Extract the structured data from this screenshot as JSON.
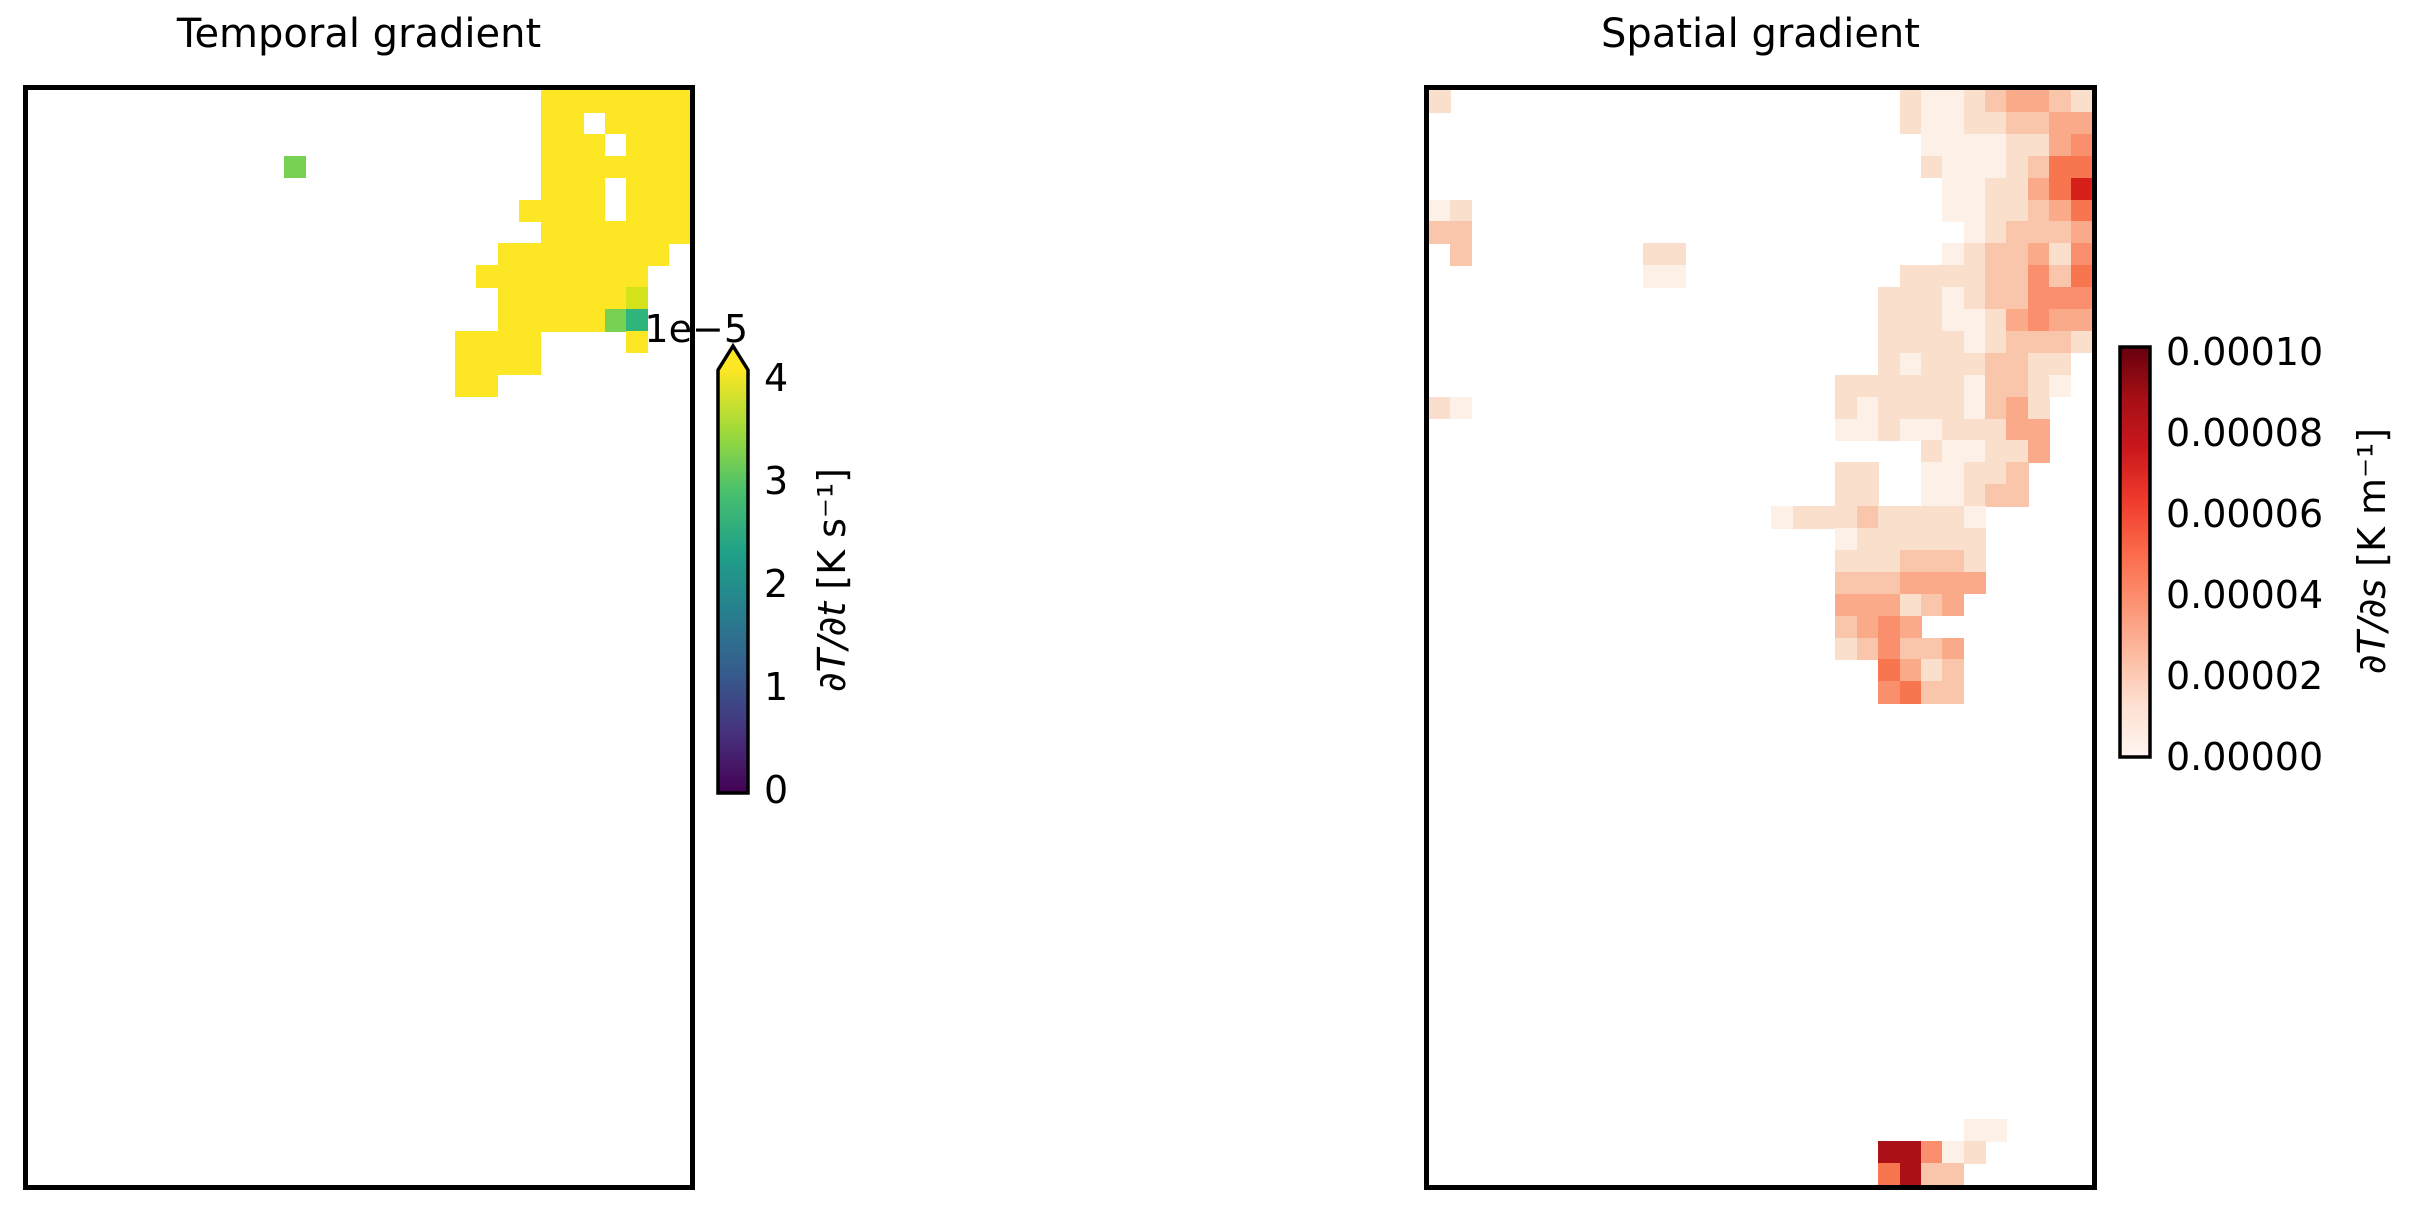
{
  "figure": {
    "background": "#ffffff"
  },
  "chart_data": [
    {
      "type": "heatmap",
      "title": "Temporal gradient",
      "xlabel": "",
      "ylabel": "",
      "grid": {
        "cols": 31,
        "rows": 50,
        "note": "sparse_rows maps row index (0=top) to a 31-char string; '.'=masked/white, letters are palette keys",
        "sparse_rows": {
          "0": "........................YYYYYYY",
          "1": "........................YY.YYYY",
          "2": "........................YYY.YYY",
          "3": "............G...........YYYYYYY",
          "4": "........................YYY.YYY",
          "5": ".......................YYYY.YYY",
          "6": "........................YYYYYYY",
          "7": "......................YYYYYYYY.",
          "8": ".....................YYYYYYYY..",
          "9": "......................YYYYYYL..",
          "10": "......................YYYYYGT..",
          "11": "....................YYYY....Y..",
          "12": "....................YYYY.......",
          "13": "....................YY........."
        },
        "value_legend": {
          "Y": "at or above vmax (>= 4e-5 K/s)",
          "L": "approx 3.7e-5 K/s",
          "G": "approx 3.2e-5 K/s",
          "T": "approx 2.8e-5 K/s"
        }
      },
      "palette": {
        "Y": "#fde725",
        "L": "#d4e21b",
        "G": "#77d152",
        "T": "#2fb47c"
      },
      "colorbar": {
        "cmap": "viridis",
        "extend_max": true,
        "vmin": 0,
        "vmax": 4e-05,
        "ticks": [
          "0",
          "1",
          "2",
          "3",
          "4"
        ],
        "offset_text": "1e−5",
        "label_var": "∂T/∂t",
        "label_unit": " [K s⁻¹]",
        "gradient_stops": [
          "#440154",
          "#46327e",
          "#365c8d",
          "#277f8e",
          "#1fa187",
          "#4ac16d",
          "#a0da39",
          "#fde725"
        ]
      }
    },
    {
      "type": "heatmap",
      "title": "Spatial gradient",
      "xlabel": "",
      "ylabel": "",
      "grid": {
        "cols": 31,
        "rows": 50,
        "note": "sparse_rows maps row index (0=top) to a 31-char string; '.'=masked/white, digits are palette keys (Reds intensity)",
        "sparse_rows": {
          "0": "2.....................211234432",
          "1": "......................211223344",
          "2": ".......................11112245",
          "3": ".......................21112366",
          "4": "........................1122467",
          "5": "12......................1122346",
          "6": "33.......................123334",
          "7": ".3........22............1233425",
          "8": "..........11..........222233536",
          "9": ".....................2221233555",
          "10": ".....................2221124544",
          "11": ".....................2222123332",
          "12": ".....................212223322.",
          "13": "...................22222213321.",
          "14": "21.................2122221342..",
          "15": "...................1121122244..",
          "16": ".......................211224..",
          "17": "...................22..11223...",
          "18": "...................22..11233...",
          "19": "................1222322221.....",
          "20": "...................1222222.....",
          "21": "...................2223332.....",
          "22": "...................3334444.....",
          "23": "...................444234......",
          "24": "...................3454........",
          "25": "...................235334......",
          "26": ".....................6423......",
          "27": ".....................5633......",
          "47": ".........................11....",
          "48": ".....................88512.....",
          "49": ".....................6833......"
        },
        "value_legend": {
          "1": "approx 0.00001 K/m",
          "2": "approx 0.000015 K/m",
          "3": "approx 0.000025 K/m",
          "4": "approx 0.000035 K/m",
          "5": "approx 0.000045 K/m",
          "6": "approx 0.00006 K/m",
          "7": "approx 0.000075 K/m",
          "8": "approx 0.00009 K/m",
          "9": "approx 0.0001 K/m"
        }
      },
      "palette": {
        "1": "#fdf0e7",
        "2": "#fbdfcd",
        "3": "#f9c6ab",
        "4": "#faaa88",
        "5": "#fa8f6d",
        "6": "#f7764f",
        "7": "#d62019",
        "8": "#ac1117",
        "9": "#67000d"
      },
      "colorbar": {
        "cmap": "Reds",
        "extend_max": false,
        "vmin": 0,
        "vmax": 0.0001,
        "ticks": [
          "0.00000",
          "0.00002",
          "0.00004",
          "0.00006",
          "0.00008",
          "0.00010"
        ],
        "offset_text": "",
        "label_var": "∂T/∂s",
        "label_unit": " [K m⁻¹]",
        "gradient_stops": [
          "#fff5f0",
          "#fee0d2",
          "#fcbba1",
          "#fc9272",
          "#fb6a4a",
          "#ef3b2c",
          "#cb181d",
          "#a50f15",
          "#67000d"
        ]
      }
    }
  ]
}
